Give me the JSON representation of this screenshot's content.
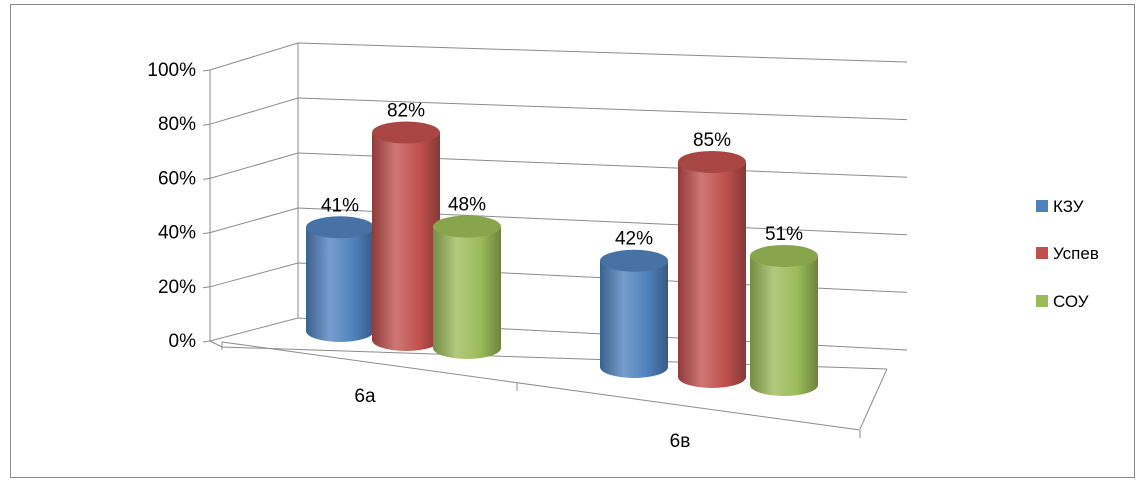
{
  "chart_data": {
    "type": "bar",
    "title": "",
    "categories": [
      "6а",
      "6в"
    ],
    "series": [
      {
        "name": "КЗУ",
        "values": [
          41,
          42
        ],
        "labels": [
          "41%",
          "42%"
        ],
        "color": "#4f81bd"
      },
      {
        "name": "Успев",
        "values": [
          82,
          85
        ],
        "labels": [
          "82%",
          "85%"
        ],
        "color": "#c0504d"
      },
      {
        "name": "СОУ",
        "values": [
          48,
          51
        ],
        "labels": [
          "48%",
          "51%"
        ],
        "color": "#9bbb59"
      }
    ],
    "y_ticks": [
      "0%",
      "20%",
      "40%",
      "60%",
      "80%",
      "100%"
    ],
    "ylim": [
      0,
      100
    ],
    "grid": true,
    "legend_position": "right"
  }
}
